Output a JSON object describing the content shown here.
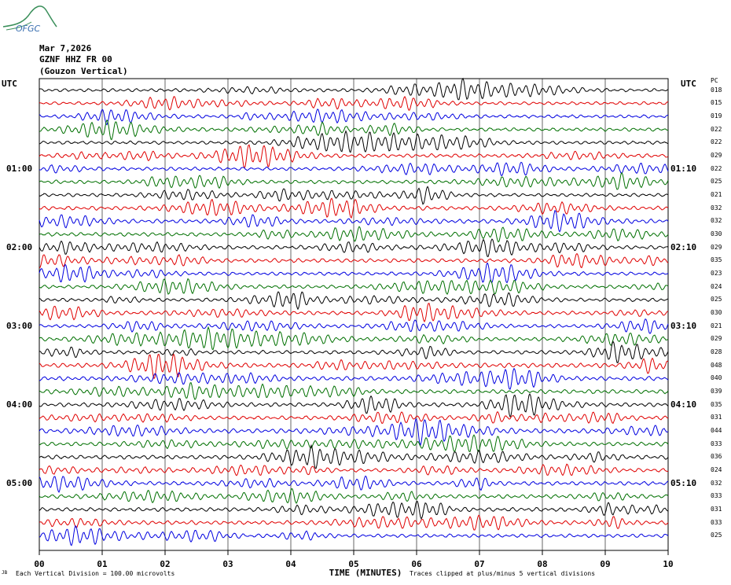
{
  "logo": {
    "name": "ofgc-logo",
    "text": "OFGC",
    "color": "#3a8f5a"
  },
  "header": {
    "date": "Mar 7,2026",
    "station": "GZNF HHZ FR 00",
    "location": "(Gouzon Vertical)"
  },
  "utc_left_label": "UTC",
  "utc_right_label": "UTC",
  "pct_header": "PC",
  "left_times": [
    "01:00",
    "02:00",
    "03:00",
    "04:00",
    "05:00"
  ],
  "right_times": [
    "01:10",
    "02:10",
    "03:10",
    "04:10",
    "05:10"
  ],
  "x_axis_label": "TIME (MINUTES)",
  "footer_left_prefix": "JB",
  "footer_left": "Each Vertical Division =  100.00 microvolts",
  "footer_right": "Traces clipped at plus/minus 5 vertical divisions",
  "trace_colors": [
    "#000000",
    "#e00000",
    "#0000e0",
    "#007000"
  ],
  "chart_data": {
    "type": "line",
    "xlabel": "TIME (MINUTES)",
    "xlim": [
      0,
      10
    ],
    "x_ticks": [
      "00",
      "01",
      "02",
      "03",
      "04",
      "05",
      "06",
      "07",
      "08",
      "09",
      "10"
    ],
    "row_percent_values": [
      "018",
      "015",
      "019",
      "022",
      "022",
      "029",
      "022",
      "025",
      "021",
      "032",
      "032",
      "030",
      "029",
      "035",
      "023",
      "024",
      "025",
      "030",
      "021",
      "029",
      "028",
      "048",
      "040",
      "039",
      "035",
      "031",
      "044",
      "033",
      "036",
      "024",
      "032",
      "033",
      "031",
      "033",
      "025"
    ],
    "clip_divisions": 5,
    "vertical_division_microvolts": 100.0
  }
}
